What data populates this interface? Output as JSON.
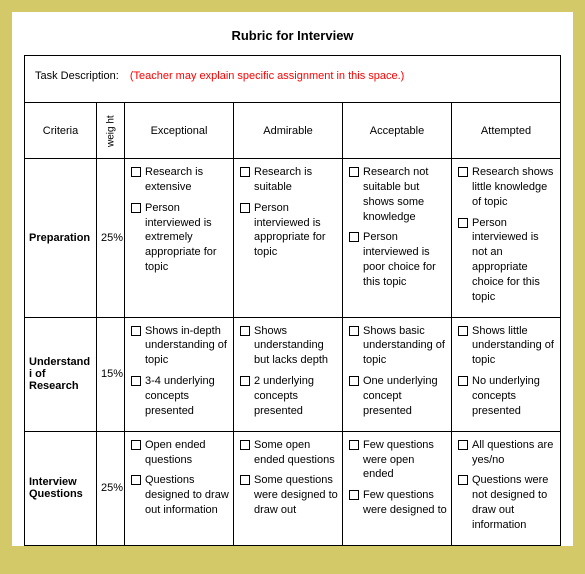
{
  "title": "Rubric for Interview",
  "task": {
    "label": "Task Description:",
    "hint": "(Teacher may explain specific assignment in this space.)"
  },
  "headers": {
    "criteria": "Criteria",
    "weight": "weig ht",
    "levels": [
      "Exceptional",
      "Admirable",
      "Acceptable",
      "Attempted"
    ]
  },
  "rows": [
    {
      "criteria": "Preparation",
      "weight": "25%",
      "cells": [
        [
          "Research is extensive",
          "Person interviewed is extremely appropriate for topic"
        ],
        [
          "Research is suitable",
          "Person interviewed is appropriate for topic"
        ],
        [
          "Research not suitable but shows some knowledge",
          "Person interviewed is poor choice for this topic"
        ],
        [
          "Research shows little knowledge of topic",
          "Person interviewed is not an appropriate choice for this topic"
        ]
      ]
    },
    {
      "criteria": "Understandi of Research",
      "weight": "15%",
      "cells": [
        [
          "Shows in-depth understanding of topic",
          "3-4 underlying concepts presented"
        ],
        [
          "Shows understanding but lacks depth",
          "2 underlying concepts presented"
        ],
        [
          "Shows basic understanding of topic",
          "One underlying concept presented"
        ],
        [
          "Shows little understanding of topic",
          "No underlying concepts presented"
        ]
      ]
    },
    {
      "criteria": "Interview Questions",
      "weight": "25%",
      "cells": [
        [
          "Open ended questions",
          "Questions designed to draw out information"
        ],
        [
          "Some open ended questions",
          "Some questions were designed to draw out"
        ],
        [
          "Few questions were open ended",
          "Few questions were designed to"
        ],
        [
          "All questions are yes/no",
          "Questions were not designed to draw out information"
        ]
      ]
    }
  ],
  "colors": {
    "page_bg": "#d4c968",
    "content_bg": "#ffffff",
    "border": "#000000",
    "hint": "#ff0000"
  }
}
